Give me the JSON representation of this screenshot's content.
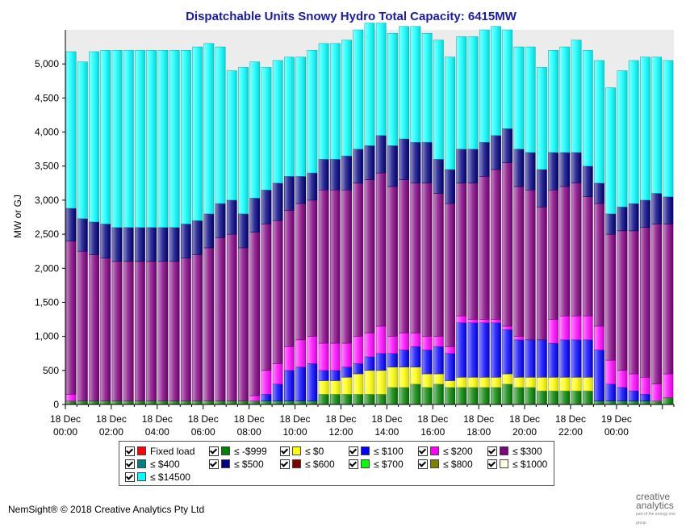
{
  "chart_data": {
    "type": "bar",
    "stacked": true,
    "title": "Dispatchable Units Snowy Hydro Total Capacity: 6415MW",
    "ylabel": "MW or GJ",
    "xlabel": "",
    "ylim": [
      0,
      5500
    ],
    "yticks": [
      0,
      500,
      1000,
      1500,
      2000,
      2500,
      3000,
      3500,
      4000,
      4500,
      5000
    ],
    "ytick_labels": [
      "0",
      "500",
      "1,000",
      "1,500",
      "2,000",
      "2,500",
      "3,000",
      "3,500",
      "4,000",
      "4,500",
      "5,000"
    ],
    "xtick_labels": [
      {
        "index": 0,
        "line1": "18 Dec",
        "line2": "00:00"
      },
      {
        "index": 4,
        "line1": "18 Dec",
        "line2": "02:00"
      },
      {
        "index": 8,
        "line1": "18 Dec",
        "line2": "04:00"
      },
      {
        "index": 12,
        "line1": "18 Dec",
        "line2": "06:00"
      },
      {
        "index": 16,
        "line1": "18 Dec",
        "line2": "08:00"
      },
      {
        "index": 20,
        "line1": "18 Dec",
        "line2": "10:00"
      },
      {
        "index": 24,
        "line1": "18 Dec",
        "line2": "12:00"
      },
      {
        "index": 28,
        "line1": "18 Dec",
        "line2": "14:00"
      },
      {
        "index": 32,
        "line1": "18 Dec",
        "line2": "16:00"
      },
      {
        "index": 36,
        "line1": "18 Dec",
        "line2": "18:00"
      },
      {
        "index": 40,
        "line1": "18 Dec",
        "line2": "20:00"
      },
      {
        "index": 44,
        "line1": "18 Dec",
        "line2": "22:00"
      },
      {
        "index": 48,
        "line1": "19 Dec",
        "line2": "00:00"
      }
    ],
    "series": [
      {
        "name": "≤ -$999",
        "color": "#008000",
        "values": [
          50,
          50,
          50,
          50,
          50,
          50,
          50,
          50,
          50,
          50,
          50,
          50,
          50,
          50,
          50,
          50,
          50,
          50,
          50,
          50,
          50,
          50,
          150,
          150,
          150,
          150,
          150,
          150,
          250,
          250,
          300,
          250,
          300,
          250,
          250,
          250,
          250,
          250,
          300,
          250,
          250,
          200,
          200,
          200,
          200,
          200,
          50,
          50,
          50,
          50,
          50,
          50,
          100
        ]
      },
      {
        "name": "≤ $0",
        "color": "#ffff00",
        "values": [
          0,
          0,
          0,
          0,
          0,
          0,
          0,
          0,
          0,
          0,
          0,
          0,
          0,
          0,
          0,
          0,
          0,
          0,
          0,
          0,
          0,
          0,
          200,
          200,
          250,
          300,
          350,
          350,
          300,
          300,
          250,
          200,
          150,
          100,
          150,
          150,
          150,
          150,
          150,
          150,
          150,
          200,
          200,
          200,
          200,
          200,
          0,
          0,
          0,
          0,
          0,
          0,
          0
        ]
      },
      {
        "name": "≤ $100",
        "color": "#0000ff",
        "values": [
          0,
          0,
          0,
          0,
          0,
          0,
          0,
          0,
          0,
          0,
          0,
          0,
          0,
          0,
          0,
          0,
          0,
          100,
          250,
          450,
          500,
          550,
          150,
          150,
          150,
          150,
          200,
          250,
          200,
          250,
          300,
          350,
          400,
          400,
          800,
          800,
          800,
          800,
          650,
          550,
          550,
          550,
          500,
          550,
          550,
          550,
          750,
          250,
          200,
          150,
          100,
          0,
          0
        ]
      },
      {
        "name": "≤ $200",
        "color": "#ff00ff",
        "values": [
          100,
          0,
          0,
          0,
          0,
          0,
          0,
          0,
          0,
          0,
          0,
          0,
          0,
          0,
          0,
          0,
          80,
          350,
          300,
          350,
          400,
          400,
          400,
          400,
          350,
          400,
          350,
          400,
          250,
          250,
          200,
          200,
          150,
          100,
          100,
          50,
          50,
          50,
          50,
          50,
          0,
          0,
          350,
          350,
          350,
          350,
          350,
          350,
          250,
          250,
          250,
          250,
          350
        ]
      },
      {
        "name": "≤ $300",
        "color": "#800080",
        "values": [
          2250,
          2200,
          2150,
          2100,
          2050,
          2050,
          2050,
          2050,
          2050,
          2050,
          2100,
          2150,
          2250,
          2400,
          2450,
          2250,
          2400,
          2150,
          2100,
          2000,
          2000,
          2000,
          2250,
          2250,
          2250,
          2250,
          2250,
          2250,
          2200,
          2250,
          2200,
          2250,
          2100,
          2100,
          1950,
          2000,
          2100,
          2200,
          2400,
          2200,
          2200,
          1950,
          1900,
          1900,
          1950,
          1750,
          1800,
          1850,
          2050,
          2100,
          2200,
          2350,
          2200
        ]
      },
      {
        "name": "≤ $500",
        "color": "#000080",
        "values": [
          480,
          480,
          480,
          500,
          500,
          500,
          500,
          500,
          500,
          500,
          500,
          500,
          500,
          500,
          500,
          500,
          500,
          500,
          550,
          500,
          400,
          400,
          450,
          450,
          500,
          500,
          500,
          550,
          600,
          600,
          600,
          600,
          500,
          500,
          500,
          500,
          500,
          500,
          500,
          550,
          550,
          550,
          550,
          500,
          450,
          450,
          300,
          300,
          350,
          400,
          400,
          450,
          400
        ]
      },
      {
        "name": "≤ $14500",
        "color": "#00ffff",
        "values": [
          2300,
          2300,
          2500,
          2550,
          2600,
          2600,
          2600,
          2600,
          2600,
          2600,
          2550,
          2550,
          2500,
          2300,
          1900,
          2150,
          2000,
          1800,
          1800,
          1750,
          1750,
          1800,
          1700,
          1700,
          1700,
          1750,
          1800,
          1650,
          1650,
          1650,
          1700,
          1600,
          1750,
          1650,
          1650,
          1650,
          1650,
          1600,
          1450,
          1500,
          1550,
          1500,
          1500,
          1550,
          1650,
          1700,
          1800,
          1850,
          2000,
          2100,
          2100,
          2000,
          2000
        ]
      }
    ],
    "n_bars": 53,
    "legend": [
      {
        "label": "Fixed load",
        "color": "#ff0000"
      },
      {
        "label": "≤ -$999",
        "color": "#008000"
      },
      {
        "label": "≤ $0",
        "color": "#ffff00"
      },
      {
        "label": "≤ $100",
        "color": "#0000ff"
      },
      {
        "label": "≤ $200",
        "color": "#ff00ff"
      },
      {
        "label": "≤ $300",
        "color": "#800080"
      },
      {
        "label": "≤ $400",
        "color": "#008080"
      },
      {
        "label": "≤ $500",
        "color": "#000080"
      },
      {
        "label": "≤ $600",
        "color": "#800000"
      },
      {
        "label": "≤ $700",
        "color": "#00ff00"
      },
      {
        "label": "≤ $800",
        "color": "#808000"
      },
      {
        "label": "≤ $1000",
        "color": "#ffffe0"
      },
      {
        "label": "≤ $14500",
        "color": "#00ffff"
      }
    ],
    "grid": false,
    "legend_placement": "bottom"
  },
  "footer": "NemSight® © 2018 Creative Analytics Pty Ltd",
  "brand": {
    "line1": "creative",
    "line2": "analytics",
    "line3": "part of the energy one group"
  }
}
